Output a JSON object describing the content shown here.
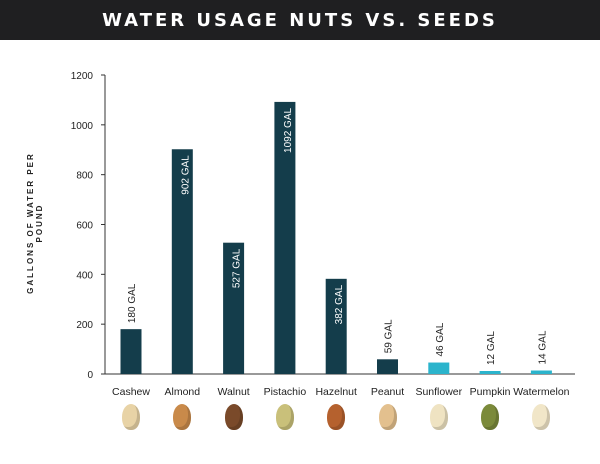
{
  "banner": {
    "title": "WATER USAGE NUTS VS. SEEDS"
  },
  "colors": {
    "nut_bar": "#143d4b",
    "seed_bar": "#2bb4cc",
    "banner_bg": "#1f1f21"
  },
  "chart_data": {
    "type": "bar",
    "title": "WATER USAGE NUTS VS. SEEDS",
    "xlabel": "",
    "ylabel": "GALLONS OF WATER PER POUND",
    "ylim": [
      0,
      1200
    ],
    "yticks": [
      0,
      200,
      400,
      600,
      800,
      1000,
      1200
    ],
    "grid": false,
    "categories": [
      "Cashew",
      "Almond",
      "Walnut",
      "Pistachio",
      "Hazelnut",
      "Peanut",
      "Sunflower",
      "Pumpkin",
      "Watermelon"
    ],
    "values": [
      180,
      902,
      527,
      1092,
      382,
      59,
      46,
      12,
      14
    ],
    "data_labels": [
      "180 GAL",
      "902 GAL",
      "527 GAL",
      "1092 GAL",
      "382 GAL",
      "59 GAL",
      "46 GAL",
      "12 GAL",
      "14 GAL"
    ],
    "groups": [
      "nut",
      "nut",
      "nut",
      "nut",
      "nut",
      "nut",
      "seed",
      "seed",
      "seed"
    ]
  },
  "icons": [
    {
      "name": "cashew-icon",
      "color": "#e8d3a6"
    },
    {
      "name": "almond-icon",
      "color": "#c98a4a"
    },
    {
      "name": "walnut-icon",
      "color": "#7a4a2a"
    },
    {
      "name": "pistachio-icon",
      "color": "#c9c07a"
    },
    {
      "name": "hazelnut-icon",
      "color": "#b5612e"
    },
    {
      "name": "peanut-icon",
      "color": "#e3c08e"
    },
    {
      "name": "sunflower-seed-icon",
      "color": "#efe3c2"
    },
    {
      "name": "pumpkin-seed-icon",
      "color": "#7b8a3a"
    },
    {
      "name": "watermelon-seed-icon",
      "color": "#f1e6c8"
    }
  ]
}
